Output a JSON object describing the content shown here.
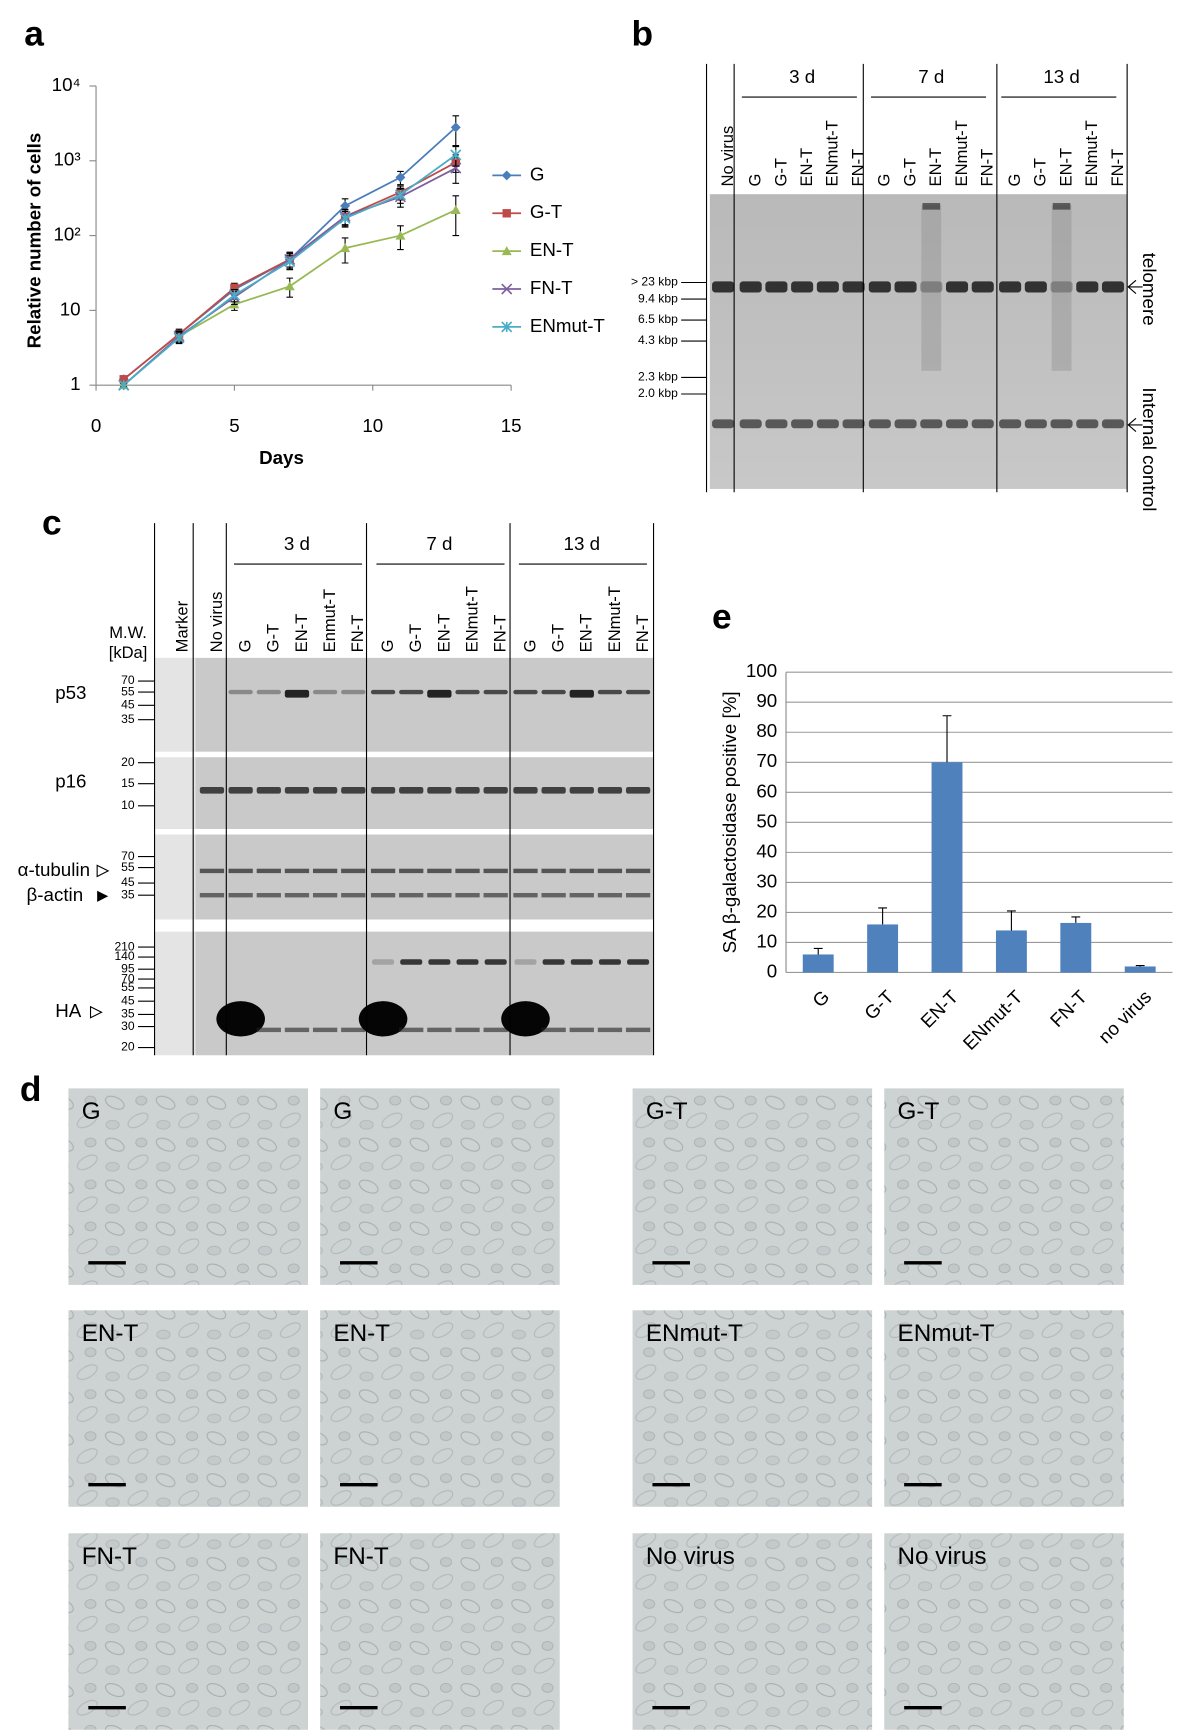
{
  "panel_labels": [
    "a",
    "b",
    "c",
    "d",
    "e"
  ],
  "chart_data": [
    {
      "type": "line",
      "xlabel": "Days",
      "ylabel": "Relative number of cells",
      "x": [
        1,
        3,
        5,
        7,
        9,
        11,
        13
      ],
      "xlim": [
        0,
        15
      ],
      "xticks": [
        0,
        5,
        10,
        15
      ],
      "ylim": [
        1,
        10000
      ],
      "yscale": "log",
      "yticks": [
        1,
        10,
        {
          "value": 100,
          "label": "10²"
        },
        {
          "value": 1000,
          "label": "10³"
        },
        {
          "value": 10000,
          "label": "10⁴"
        }
      ],
      "legend": "right",
      "series": [
        {
          "name": "G",
          "color": "#4a7ebb",
          "marker": "diamond",
          "values": [
            1.2,
            4.8,
            19,
            48,
            250,
            600,
            2800
          ],
          "errors": [
            0.1,
            0.6,
            3,
            10,
            60,
            120,
            1200
          ]
        },
        {
          "name": "G-T",
          "color": "#be4b48",
          "marker": "square",
          "values": [
            1.2,
            4.8,
            20,
            48,
            180,
            380,
            950
          ],
          "errors": [
            0.1,
            0.8,
            3,
            12,
            40,
            80,
            250
          ]
        },
        {
          "name": "EN-T",
          "color": "#98b954",
          "marker": "triangle",
          "values": [
            1,
            4.5,
            12,
            21,
            68,
            100,
            220
          ],
          "errors": [
            0.05,
            0.8,
            2,
            6,
            25,
            35,
            120
          ]
        },
        {
          "name": "FN-T",
          "color": "#7d60a0",
          "marker": "x",
          "values": [
            1,
            4.5,
            15,
            48,
            180,
            330,
            800
          ],
          "errors": [
            0.05,
            0.7,
            3,
            10,
            45,
            90,
            300
          ]
        },
        {
          "name": "ENmut-T",
          "color": "#4bacc6",
          "marker": "star",
          "values": [
            1,
            4.3,
            16,
            45,
            170,
            350,
            1200
          ],
          "errors": [
            0.05,
            0.7,
            3,
            10,
            40,
            80,
            350
          ]
        }
      ]
    },
    {
      "type": "bar",
      "ylabel": "SA β-galactosidase positive [%]",
      "categories": [
        "G",
        "G-T",
        "EN-T",
        "ENmut-T",
        "FN-T",
        "no virus"
      ],
      "values": [
        6,
        16,
        70,
        14,
        16.5,
        2
      ],
      "errors": [
        2,
        5.5,
        15.5,
        6.5,
        2,
        0.3
      ],
      "color": "#4f81bd",
      "ylim": [
        0,
        100
      ],
      "yticks": [
        0,
        10,
        20,
        30,
        40,
        50,
        60,
        70,
        80,
        90,
        100
      ],
      "grid": true
    }
  ],
  "blot_b": {
    "no_virus": "No virus",
    "groups": [
      {
        "label": "3 d",
        "lanes": [
          "G",
          "G-T",
          "EN-T",
          "ENmut-T",
          "FN-T"
        ]
      },
      {
        "label": "7 d",
        "lanes": [
          "G",
          "G-T",
          "EN-T",
          "ENmut-T",
          "FN-T"
        ]
      },
      {
        "label": "13 d",
        "lanes": [
          "G",
          "G-T",
          "EN-T",
          "ENmut-T",
          "FN-T"
        ]
      }
    ],
    "size_markers": [
      "> 23 kbp",
      "9.4 kbp",
      "6.5 kbp",
      "4.3 kbp",
      "2.3 kbp",
      "2.0 kbp"
    ],
    "band_labels": [
      "telomere",
      "Internal control"
    ]
  },
  "blot_c": {
    "marker": "Marker",
    "no_virus": "No virus",
    "mw_title": [
      "M.W.",
      "[kDa]"
    ],
    "groups": [
      {
        "label": "3 d",
        "lanes": [
          "G",
          "G-T",
          "EN-T",
          "Enmut-T",
          "FN-T"
        ]
      },
      {
        "label": "7 d",
        "lanes": [
          "G",
          "G-T",
          "EN-T",
          "ENmut-T",
          "FN-T"
        ]
      },
      {
        "label": "13 d",
        "lanes": [
          "G",
          "G-T",
          "EN-T",
          "ENmut-T",
          "FN-T"
        ]
      }
    ],
    "rows": [
      {
        "labels": [
          "p53"
        ],
        "mw": [
          70,
          55,
          45,
          35
        ]
      },
      {
        "labels": [
          "p16"
        ],
        "mw": [
          20,
          15,
          10
        ]
      },
      {
        "labels": [
          "α-tubulin",
          "β-actin"
        ],
        "mw": [
          70,
          55,
          45,
          35
        ]
      },
      {
        "labels": [
          "HA"
        ],
        "mw": [
          210,
          140,
          95,
          70,
          55,
          45,
          35,
          30,
          20
        ]
      }
    ]
  },
  "micrographs": [
    [
      "G",
      "G",
      "G-T",
      "G-T"
    ],
    [
      "EN-T",
      "EN-T",
      "ENmut-T",
      "ENmut-T"
    ],
    [
      "FN-T",
      "FN-T",
      "No virus",
      "No virus"
    ]
  ]
}
